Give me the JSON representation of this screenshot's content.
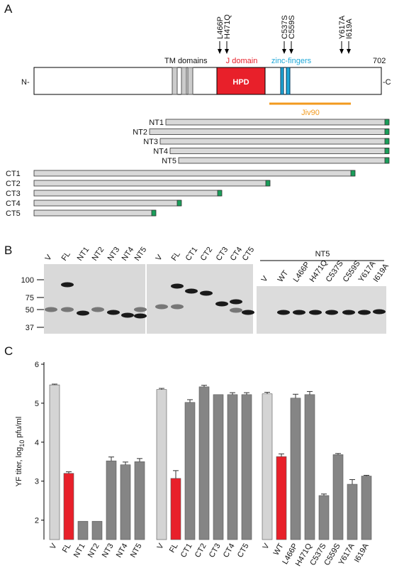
{
  "panel_a": {
    "label": "A",
    "n_term": "N-",
    "c_term": "-C",
    "length": 702,
    "tm_label": "TM domains",
    "j_label": "J domain",
    "hpd": "HPD",
    "zinc_label": "zinc-fingers",
    "jiv_label": "Jiv90",
    "mutations": [
      "L466P",
      "H471Q",
      "C537S",
      "C559S",
      "Y617A",
      "I619A"
    ],
    "nt_constructs": [
      "NT1",
      "NT2",
      "NT3",
      "NT4",
      "NT5"
    ],
    "ct_constructs": [
      "CT1",
      "CT2",
      "CT3",
      "CT4",
      "CT5"
    ]
  },
  "panel_b": {
    "label": "B",
    "mw_markers": [
      100,
      75,
      50,
      37
    ],
    "blot1_lanes": [
      "V",
      "FL",
      "NT1",
      "NT2",
      "NT3",
      "NT4",
      "NT5"
    ],
    "blot2_lanes": [
      "V",
      "FL",
      "CT1",
      "CT2",
      "CT3",
      "CT4",
      "CT5"
    ],
    "nt5_header": "NT5",
    "blot3_lanes": [
      "V",
      "WT",
      "L466P",
      "H471Q",
      "C537S",
      "C559S",
      "Y617A",
      "I619A"
    ]
  },
  "chart_data": {
    "type": "bar",
    "panel_label": "C",
    "ylabel": {
      "text": "YF titer, log",
      "sub": "10",
      "unit": "pfu/ml"
    },
    "ylim": [
      1.5,
      6
    ],
    "yticks": [
      2,
      3,
      4,
      5,
      6
    ],
    "groups": [
      {
        "categories": [
          "V",
          "FL",
          "NT1",
          "NT2",
          "NT3",
          "NT4",
          "NT5"
        ],
        "values": [
          5.47,
          3.2,
          1.97,
          1.97,
          3.52,
          3.42,
          3.5
        ],
        "errors": [
          0.02,
          0.04,
          null,
          null,
          0.1,
          0.07,
          0.08
        ],
        "colors": [
          "#d4d4d4",
          "#e8202a",
          "#858585",
          "#858585",
          "#858585",
          "#858585",
          "#858585"
        ]
      },
      {
        "categories": [
          "V",
          "FL",
          "CT1",
          "CT2",
          "CT3",
          "CT4",
          "CT5"
        ],
        "values": [
          5.35,
          3.07,
          5.02,
          5.42,
          5.22,
          5.22,
          5.22
        ],
        "errors": [
          0.03,
          0.2,
          0.07,
          0.04,
          null,
          0.05,
          0.05
        ],
        "colors": [
          "#d4d4d4",
          "#e8202a",
          "#858585",
          "#858585",
          "#858585",
          "#858585",
          "#858585"
        ]
      },
      {
        "categories": [
          "V",
          "WT",
          "L466P",
          "H471Q",
          "C537S",
          "C559S",
          "Y617A",
          "I619A"
        ],
        "values": [
          5.24,
          3.63,
          5.13,
          5.22,
          2.63,
          3.68,
          2.92,
          3.13
        ],
        "errors": [
          0.04,
          0.07,
          0.1,
          0.08,
          0.04,
          0.03,
          0.12,
          0.02
        ],
        "colors": [
          "#d4d4d4",
          "#e8202a",
          "#858585",
          "#858585",
          "#858585",
          "#858585",
          "#858585",
          "#858585"
        ]
      }
    ]
  }
}
